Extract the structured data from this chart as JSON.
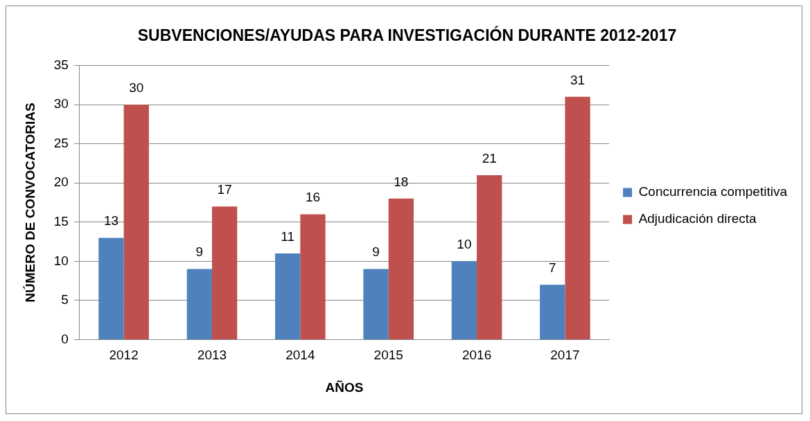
{
  "chart_data": {
    "type": "bar",
    "title": "SUBVENCIONES/AYUDAS PARA INVESTIGACIÓN DURANTE 2012-2017",
    "xlabel": "AÑOS",
    "ylabel": "NÚMERO DE CONVOCATORIAS",
    "categories": [
      "2012",
      "2013",
      "2014",
      "2015",
      "2016",
      "2017"
    ],
    "series": [
      {
        "name": "Concurrencia competitiva",
        "color": "#4f81bd",
        "values": [
          13,
          9,
          11,
          9,
          10,
          7
        ]
      },
      {
        "name": "Adjudicación directa",
        "color": "#c0504d",
        "values": [
          30,
          17,
          16,
          18,
          21,
          31
        ]
      }
    ],
    "ylim": [
      0,
      35
    ],
    "yticks": [
      0,
      5,
      10,
      15,
      20,
      25,
      30,
      35
    ],
    "grid": "y",
    "legend": "right",
    "data_labels": true
  }
}
